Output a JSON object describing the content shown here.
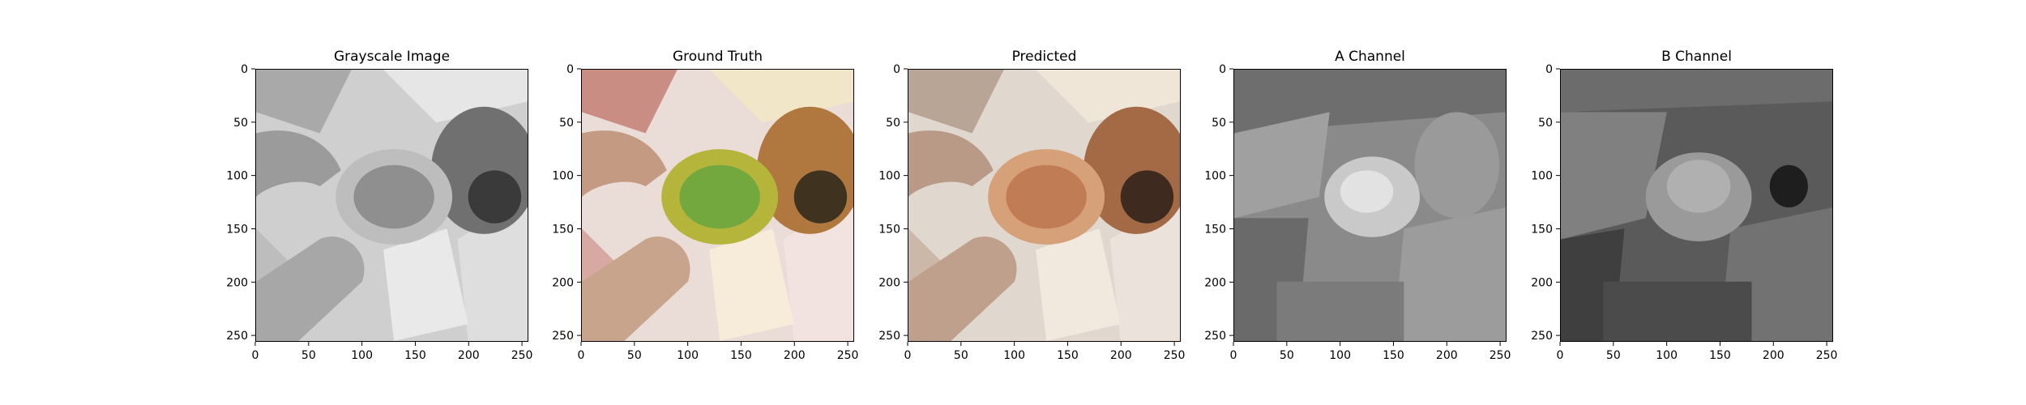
{
  "figure": {
    "panels": [
      {
        "id": "grayscale",
        "title": "Grayscale Image",
        "colorized": false,
        "tone": "gray"
      },
      {
        "id": "ground-truth",
        "title": "Ground Truth",
        "colorized": true,
        "tone": "truth"
      },
      {
        "id": "predicted",
        "title": "Predicted",
        "colorized": true,
        "tone": "predicted"
      },
      {
        "id": "a-channel",
        "title": "A Channel",
        "colorized": false,
        "tone": "achannel"
      },
      {
        "id": "b-channel",
        "title": "B Channel",
        "colorized": false,
        "tone": "bchannel"
      }
    ],
    "x_ticks": [
      "0",
      "50",
      "100",
      "150",
      "200",
      "250"
    ],
    "y_ticks": [
      "0",
      "50",
      "100",
      "150",
      "200",
      "250"
    ],
    "axis_range": [
      0,
      256
    ]
  }
}
